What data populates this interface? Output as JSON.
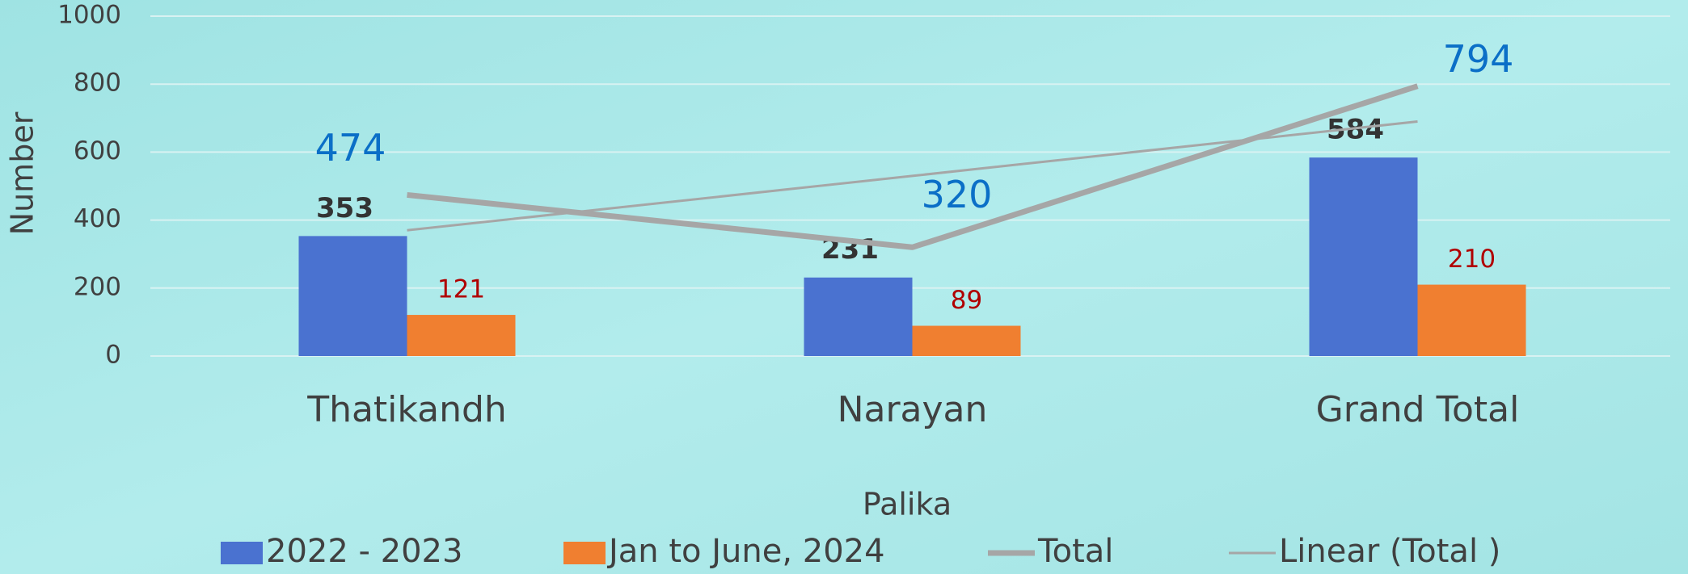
{
  "chart_data": {
    "type": "bar",
    "x_label": "Palika",
    "y_label": "Number",
    "categories": [
      "Thatikandh",
      "Narayan",
      "Grand Total"
    ],
    "series": [
      {
        "name": "2022 - 2023",
        "type": "bar",
        "color": "#4a72d0",
        "values": [
          353,
          231,
          584
        ]
      },
      {
        "name": "Jan to June, 2024",
        "type": "bar",
        "color": "#f07f30",
        "values": [
          121,
          89,
          210
        ]
      },
      {
        "name": "Total",
        "type": "line",
        "color": "#a6a6a6",
        "values": [
          474,
          320,
          794
        ]
      },
      {
        "name": "Linear (Total )",
        "type": "trendline",
        "color": "#a6a6a6",
        "values": [
          370,
          530,
          690
        ]
      }
    ],
    "ylim": [
      0,
      1000
    ],
    "yticks": [
      0,
      200,
      400,
      600,
      800,
      1000
    ],
    "grid": true,
    "legend": "bottom"
  }
}
